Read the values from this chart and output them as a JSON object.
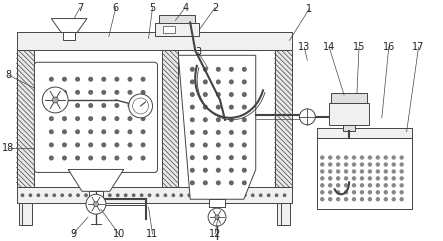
{
  "bg_color": "#ffffff",
  "line_color": "#444444",
  "dot_color": "#666666",
  "label_color": "#222222",
  "label_fontsize": 7.0,
  "fig_w": 4.43,
  "fig_h": 2.41,
  "dpi": 100
}
